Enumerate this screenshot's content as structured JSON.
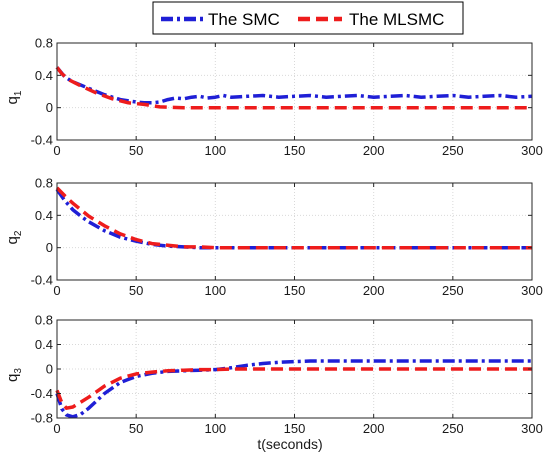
{
  "chart_data": {
    "type": "line",
    "x_label": "t(seconds)",
    "grid": true,
    "legend": {
      "placement": "top-center",
      "entries": [
        {
          "label": "The SMC",
          "color": "#1f1fd6",
          "style": "dash-dot"
        },
        {
          "label": "The MLSMC",
          "color": "#ee1c1c",
          "style": "dashed"
        }
      ]
    },
    "x_ticks": [
      "0",
      "50",
      "100",
      "150",
      "200",
      "250",
      "300"
    ],
    "y_ticks": [
      "0.8",
      "0.4",
      "0",
      "-0.4"
    ],
    "y_ticks_bottom": [
      "0.8",
      "0.4",
      "0",
      "-0.4",
      "-0.8"
    ],
    "subplots": [
      {
        "y_label": "q",
        "y_label_sub": "1",
        "xlim": [
          0,
          300
        ],
        "ylim": [
          -0.4,
          0.8
        ],
        "series": [
          {
            "name": "The SMC",
            "color": "#1f1fd6",
            "style": "dash-dot",
            "x": [
              0,
              5,
              10,
              20,
              30,
              40,
              50,
              55,
              60,
              65,
              70,
              75,
              80,
              85,
              90,
              95,
              100,
              105,
              110,
              120,
              130,
              140,
              150,
              160,
              170,
              180,
              190,
              200,
              210,
              220,
              230,
              240,
              250,
              260,
              270,
              280,
              290,
              300
            ],
            "y": [
              0.5,
              0.38,
              0.32,
              0.24,
              0.16,
              0.1,
              0.07,
              0.06,
              0.06,
              0.07,
              0.1,
              0.12,
              0.11,
              0.13,
              0.14,
              0.12,
              0.13,
              0.15,
              0.13,
              0.14,
              0.15,
              0.13,
              0.14,
              0.15,
              0.13,
              0.14,
              0.15,
              0.13,
              0.14,
              0.15,
              0.13,
              0.14,
              0.15,
              0.13,
              0.14,
              0.15,
              0.13,
              0.14
            ]
          },
          {
            "name": "The MLSMC",
            "color": "#ee1c1c",
            "style": "dashed",
            "x": [
              0,
              3,
              8,
              15,
              25,
              35,
              45,
              55,
              65,
              80,
              100,
              150,
              200,
              250,
              300
            ],
            "y": [
              0.5,
              0.42,
              0.34,
              0.27,
              0.18,
              0.11,
              0.06,
              0.04,
              0.01,
              0.0,
              0.0,
              0.0,
              0.0,
              0.0,
              0.0
            ]
          }
        ]
      },
      {
        "y_label": "q",
        "y_label_sub": "2",
        "xlim": [
          0,
          300
        ],
        "ylim": [
          -0.4,
          0.8
        ],
        "series": [
          {
            "name": "The SMC",
            "color": "#1f1fd6",
            "style": "dash-dot",
            "x": [
              0,
              5,
              10,
              15,
              20,
              30,
              40,
              50,
              60,
              70,
              80,
              90,
              100,
              120,
              140,
              160,
              180,
              200,
              220,
              240,
              260,
              280,
              300
            ],
            "y": [
              0.72,
              0.58,
              0.47,
              0.39,
              0.32,
              0.21,
              0.13,
              0.08,
              0.04,
              0.02,
              0.01,
              0.0,
              0.0,
              0.0,
              0.0,
              0.0,
              0.0,
              0.0,
              0.0,
              0.0,
              0.0,
              0.0,
              0.0
            ]
          },
          {
            "name": "The MLSMC",
            "color": "#ee1c1c",
            "style": "dashed",
            "x": [
              0,
              5,
              10,
              15,
              20,
              30,
              40,
              50,
              60,
              70,
              80,
              90,
              100,
              120,
              140,
              160,
              180,
              200,
              220,
              240,
              260,
              280,
              300
            ],
            "y": [
              0.74,
              0.64,
              0.55,
              0.47,
              0.39,
              0.27,
              0.17,
              0.1,
              0.05,
              0.03,
              0.01,
              0.01,
              0.0,
              0.0,
              0.0,
              0.0,
              0.0,
              0.0,
              0.0,
              0.0,
              0.0,
              0.0,
              0.0
            ]
          }
        ]
      },
      {
        "y_label": "q",
        "y_label_sub": "3",
        "xlim": [
          0,
          300
        ],
        "ylim": [
          -0.8,
          0.8
        ],
        "series": [
          {
            "name": "The SMC",
            "color": "#1f1fd6",
            "style": "dash-dot",
            "x": [
              0,
              3,
              6,
              10,
              15,
              20,
              25,
              30,
              40,
              50,
              60,
              70,
              80,
              90,
              100,
              110,
              120,
              130,
              140,
              150,
              160,
              180,
              200,
              250,
              300
            ],
            "y": [
              -0.4,
              -0.65,
              -0.75,
              -0.78,
              -0.74,
              -0.64,
              -0.52,
              -0.4,
              -0.22,
              -0.12,
              -0.07,
              -0.04,
              -0.03,
              -0.02,
              -0.01,
              0.02,
              0.06,
              0.09,
              0.11,
              0.12,
              0.13,
              0.13,
              0.13,
              0.13,
              0.13
            ]
          },
          {
            "name": "The MLSMC",
            "color": "#ee1c1c",
            "style": "dashed",
            "x": [
              0,
              3,
              6,
              10,
              15,
              20,
              25,
              30,
              40,
              50,
              60,
              70,
              80,
              90,
              100,
              110,
              120,
              150,
              200,
              250,
              300
            ],
            "y": [
              -0.35,
              -0.55,
              -0.64,
              -0.62,
              -0.54,
              -0.46,
              -0.37,
              -0.28,
              -0.15,
              -0.08,
              -0.05,
              -0.03,
              -0.02,
              -0.01,
              -0.01,
              0.0,
              0.0,
              0.0,
              0.0,
              0.0,
              0.0
            ]
          }
        ]
      }
    ]
  }
}
